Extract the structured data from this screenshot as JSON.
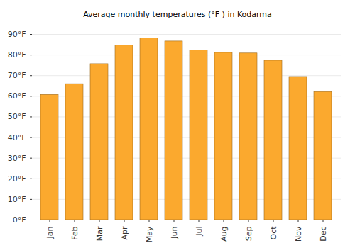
{
  "chart_data": {
    "type": "bar",
    "title": "Average monthly temperatures (°F ) in Kodarma",
    "categories": [
      "Jan",
      "Feb",
      "Mar",
      "Apr",
      "May",
      "Jun",
      "Jul",
      "Aug",
      "Sep",
      "Oct",
      "Nov",
      "Dec"
    ],
    "values": [
      60.7,
      65.9,
      75.6,
      84.6,
      88.1,
      86.6,
      82.2,
      81.1,
      80.8,
      77.3,
      69.4,
      62.1
    ],
    "color": "#fba92e",
    "ylim": [
      0,
      90
    ],
    "yticks": [
      {
        "value": 0,
        "label": "0°F"
      },
      {
        "value": 10,
        "label": "10°F"
      },
      {
        "value": 20,
        "label": "20°F"
      },
      {
        "value": 30,
        "label": "30°F"
      },
      {
        "value": 40,
        "label": "40°F"
      },
      {
        "value": 50,
        "label": "50°F"
      },
      {
        "value": 60,
        "label": "60°F"
      },
      {
        "value": 70,
        "label": "70°F"
      },
      {
        "value": 80,
        "label": "80°F"
      },
      {
        "value": 90,
        "label": "90°F"
      }
    ],
    "grid": true
  }
}
